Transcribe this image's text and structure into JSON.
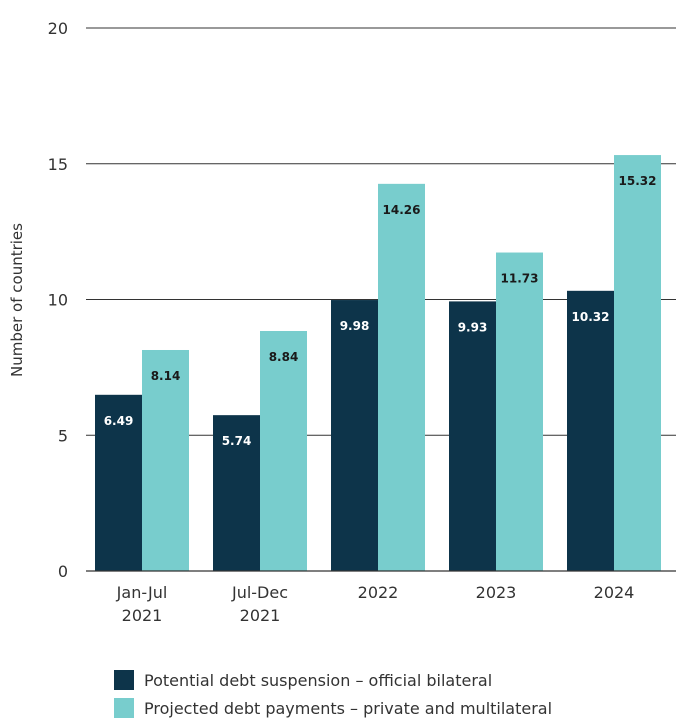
{
  "chart_data": {
    "type": "bar",
    "ylabel": "Number of countries",
    "ylim": [
      0,
      20
    ],
    "yticks": [
      0,
      5,
      10,
      15,
      20
    ],
    "grid": true,
    "legend_position": "bottom",
    "categories": [
      [
        "Jan-Jul",
        "2021"
      ],
      [
        "Jul-Dec",
        "2021"
      ],
      [
        "2022"
      ],
      [
        "2023"
      ],
      [
        "2024"
      ]
    ],
    "series": [
      {
        "name": "Potential debt suspension – official bilateral",
        "color": "#0d344a",
        "label_color": "#ffffff",
        "values": [
          6.49,
          5.74,
          9.98,
          9.93,
          10.32
        ]
      },
      {
        "name": "Projected debt payments – private and multilateral",
        "color": "#78cdcd",
        "label_color": "#1a1a1a",
        "values": [
          8.14,
          8.84,
          14.26,
          11.73,
          15.32
        ]
      }
    ]
  }
}
